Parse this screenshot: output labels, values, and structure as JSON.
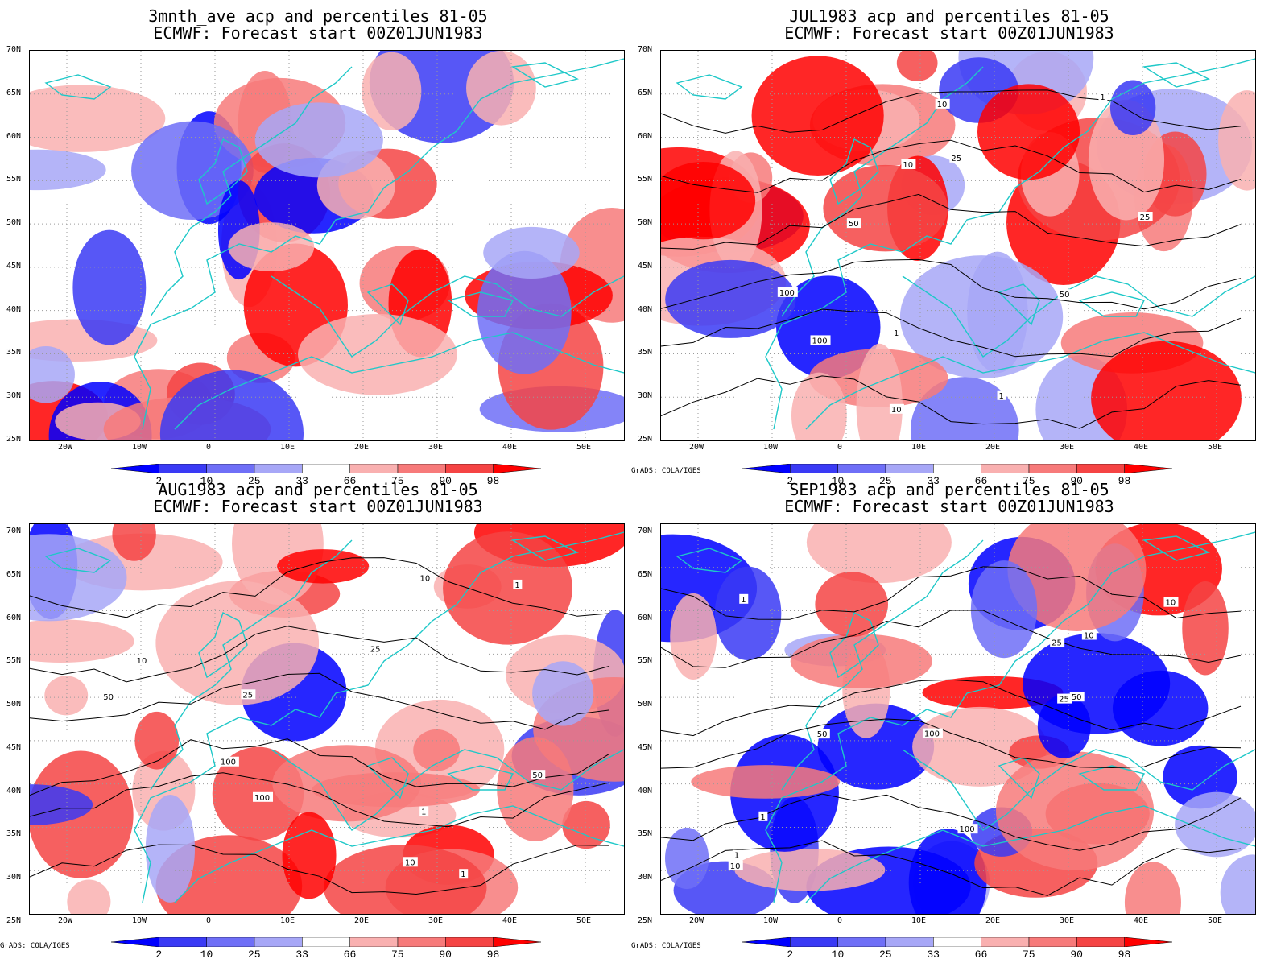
{
  "panels": [
    {
      "title1": "3mnth_ave acp and percentiles 81-05",
      "title2": "ECMWF: Forecast start 00Z01JUN1983",
      "credit": "",
      "contours": false
    },
    {
      "title1": "JUL1983 acp and percentiles 81-05",
      "title2": "ECMWF: Forecast start 00Z01JUN1983",
      "credit": "GrADS: COLA/IGES",
      "contours": true
    },
    {
      "title1": "AUG1983 acp and percentiles 81-05",
      "title2": "ECMWF: Forecast start 00Z01JUN1983",
      "credit": "GrADS: COLA/IGES",
      "contours": true
    },
    {
      "title1": "SEP1983 acp and percentiles 81-05",
      "title2": "ECMWF: Forecast start 00Z01JUN1983",
      "credit": "GrADS: COLA/IGES",
      "contours": true
    }
  ],
  "lat_labels": [
    "70N",
    "65N",
    "60N",
    "55N",
    "50N",
    "45N",
    "40N",
    "35N",
    "30N",
    "25N"
  ],
  "lon_labels": [
    "20W",
    "10W",
    "0",
    "10E",
    "20E",
    "30E",
    "40E",
    "50E"
  ],
  "colorbar": {
    "ticks": [
      "2",
      "10",
      "25",
      "33",
      "66",
      "75",
      "90",
      "98"
    ],
    "colors": [
      "#0000ff",
      "#3a3af5",
      "#6f6ff7",
      "#a7a7f7",
      "#ffffff",
      "#f9b0b0",
      "#f77a7a",
      "#f54444",
      "#ff0000"
    ]
  },
  "contour_labels": [
    "1",
    "10",
    "25",
    "50",
    "100"
  ],
  "colors": {
    "coast": "#1ec8c8",
    "contour": "#000000",
    "grid": "#9a9a9a"
  }
}
